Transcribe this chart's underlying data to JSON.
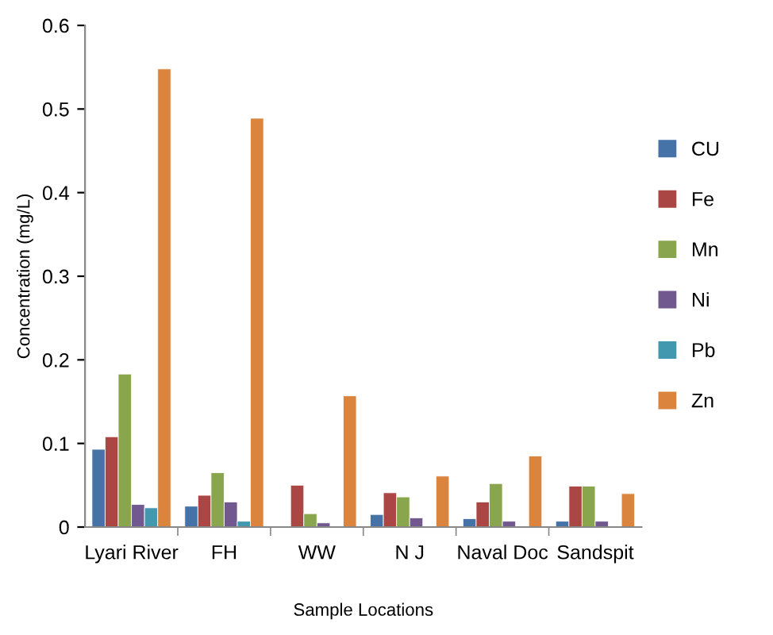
{
  "chart_data": {
    "type": "bar",
    "xlabel": "Sample Locations",
    "ylabel": "Concentration (mg/L)",
    "categories": [
      "Lyari River",
      "FH",
      "WW",
      "N J",
      "Naval Doc",
      "Sandspit"
    ],
    "series": [
      {
        "name": "CU",
        "color": "#4572a7",
        "values": [
          0.093,
          0.025,
          null,
          0.015,
          0.01,
          0.007
        ]
      },
      {
        "name": "Fe",
        "color": "#aa4643",
        "values": [
          0.108,
          0.038,
          0.05,
          0.041,
          0.03,
          0.049
        ]
      },
      {
        "name": "Mn",
        "color": "#89a54e",
        "values": [
          0.183,
          0.065,
          0.016,
          0.036,
          0.052,
          0.049
        ]
      },
      {
        "name": "Ni",
        "color": "#71588f",
        "values": [
          0.027,
          0.03,
          0.005,
          0.011,
          0.007,
          0.007
        ]
      },
      {
        "name": "Pb",
        "color": "#4198af",
        "values": [
          0.023,
          0.007,
          null,
          null,
          null,
          null
        ]
      },
      {
        "name": "Zn",
        "color": "#db843d",
        "values": [
          0.548,
          0.489,
          0.157,
          0.061,
          0.085,
          0.04
        ]
      }
    ],
    "ylim": [
      0,
      0.6
    ],
    "yticks": [
      0,
      0.1,
      0.2,
      0.3,
      0.4,
      0.5,
      0.6
    ],
    "grid": false,
    "legend": "right"
  }
}
